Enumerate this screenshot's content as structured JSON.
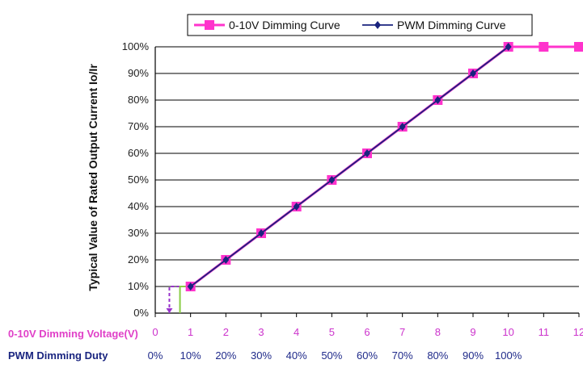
{
  "chart_data": {
    "type": "line",
    "ylabel": "Typical Value of Rated Output Current Io/Ir",
    "xlabel_voltage": "0-10V Dimming Voltage(V)",
    "xlabel_duty": "PWM Dimming Duty",
    "x_ticks": [
      "0",
      "1",
      "2",
      "3",
      "4",
      "5",
      "6",
      "7",
      "8",
      "9",
      "10",
      "11",
      "12"
    ],
    "duty_ticks": [
      "0%",
      "10%",
      "20%",
      "30%",
      "40%",
      "50%",
      "60%",
      "70%",
      "80%",
      "90%",
      "100%"
    ],
    "y_ticks": [
      "0%",
      "10%",
      "20%",
      "30%",
      "40%",
      "50%",
      "60%",
      "70%",
      "80%",
      "90%",
      "100%"
    ],
    "xlim": [
      0,
      12
    ],
    "ylim": [
      0,
      100
    ],
    "grid": "horizontal",
    "legend_position": "top",
    "series": [
      {
        "name": "0-10V Dimming Curve",
        "color": "#ff33cc",
        "marker": "square",
        "x": [
          1,
          2,
          3,
          4,
          5,
          6,
          7,
          8,
          9,
          10,
          11,
          12
        ],
        "y": [
          10,
          20,
          30,
          40,
          50,
          60,
          70,
          80,
          90,
          100,
          100,
          100
        ]
      },
      {
        "name": "PWM Dimming Curve",
        "color": "#1a237e",
        "marker": "diamond",
        "x": [
          1,
          2,
          3,
          4,
          5,
          6,
          7,
          8,
          9,
          10
        ],
        "y": [
          10,
          20,
          30,
          40,
          50,
          60,
          70,
          80,
          90,
          100
        ]
      }
    ],
    "threshold_markers": [
      {
        "type": "dashed",
        "color": "#9933cc",
        "x": 0.4,
        "y": 10
      },
      {
        "type": "solid",
        "color": "#88cc44",
        "x": 0.7,
        "y": 10
      }
    ]
  }
}
